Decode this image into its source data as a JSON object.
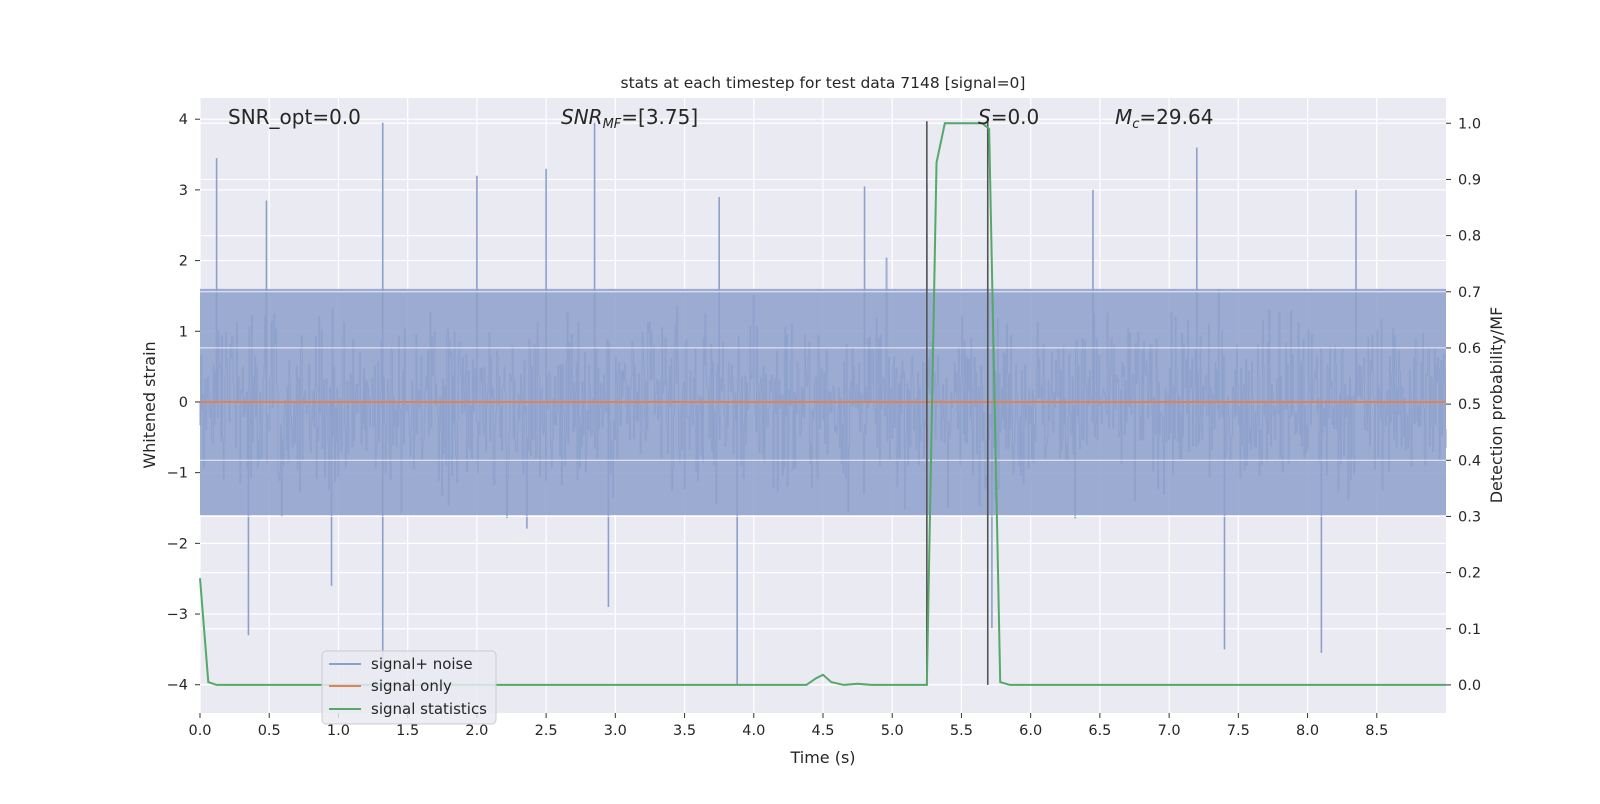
{
  "chart_data": {
    "type": "line",
    "title": "stats at each timestep for test data 7148 [signal=0]",
    "xlabel": "Time (s)",
    "ylabel_left": "Whitened strain",
    "ylabel_right": "Detection probability/MF",
    "xlim": [
      0.0,
      9.0
    ],
    "ylim_left": [
      -4.4,
      4.3
    ],
    "ylim_right": [
      -0.05,
      1.045
    ],
    "xticks": [
      "0.0",
      "0.5",
      "1.0",
      "1.5",
      "2.0",
      "2.5",
      "3.0",
      "3.5",
      "4.0",
      "4.5",
      "5.0",
      "5.5",
      "6.0",
      "6.5",
      "7.0",
      "7.5",
      "8.0",
      "8.5"
    ],
    "yticks_left": [
      "4",
      "3",
      "2",
      "1",
      "0",
      "−1",
      "−2",
      "−3",
      "−4"
    ],
    "yticks_right": [
      "1.0",
      "0.9",
      "0.8",
      "0.7",
      "0.6",
      "0.5",
      "0.4",
      "0.3",
      "0.2",
      "0.1",
      "0.0"
    ],
    "grid": true,
    "legend_position": "lower-left",
    "annotations": {
      "snr_opt": "SNR_opt=0.0",
      "snr_mf": "[3.75]",
      "s_value": "=0.0",
      "mc_value": "=29.64"
    },
    "colors": {
      "noise": "#8da0cb",
      "signal": "#dd8452",
      "stats": "#55a868",
      "vline": "#555555",
      "background": "#eaeaf2",
      "grid": "#ffffff"
    },
    "series": [
      {
        "name": "signal+ noise",
        "kind": "whitened-strain-noise",
        "envelope_typical": [
          -1.6,
          1.6
        ],
        "peaks": [
          [
            0.12,
            3.45
          ],
          [
            0.35,
            -3.3
          ],
          [
            0.48,
            2.85
          ],
          [
            0.95,
            -2.6
          ],
          [
            1.32,
            3.95
          ],
          [
            1.32,
            -3.8
          ],
          [
            2.0,
            3.2
          ],
          [
            2.5,
            3.3
          ],
          [
            2.85,
            3.95
          ],
          [
            2.95,
            -2.9
          ],
          [
            3.75,
            2.9
          ],
          [
            3.88,
            -4.0
          ],
          [
            4.8,
            3.05
          ],
          [
            5.25,
            3.1
          ],
          [
            5.72,
            -3.2
          ],
          [
            6.45,
            3.0
          ],
          [
            7.2,
            3.6
          ],
          [
            7.4,
            -3.5
          ],
          [
            8.1,
            -3.55
          ],
          [
            8.35,
            3.0
          ]
        ]
      },
      {
        "name": "signal only",
        "x": [
          0.0,
          9.0
        ],
        "y": [
          0.0,
          0.0
        ]
      },
      {
        "name": "signal statistics",
        "axis": "right",
        "x": [
          0.0,
          0.06,
          0.12,
          0.5,
          1.0,
          2.0,
          3.0,
          4.0,
          4.38,
          4.45,
          4.5,
          4.56,
          4.65,
          4.75,
          4.85,
          5.0,
          5.25,
          5.32,
          5.38,
          5.6,
          5.65,
          5.7,
          5.78,
          5.85,
          6.0,
          7.0,
          8.0,
          9.0
        ],
        "y": [
          0.19,
          0.005,
          0.0,
          0.0,
          0.0,
          0.0,
          0.0,
          0.0,
          0.0,
          0.012,
          0.018,
          0.005,
          0.0,
          0.002,
          0.0,
          0.0,
          0.0,
          0.93,
          1.0,
          1.0,
          1.0,
          0.99,
          0.005,
          0.0,
          0.0,
          0.0,
          0.0,
          0.0
        ]
      }
    ],
    "vlines": [
      5.25,
      5.69
    ]
  }
}
